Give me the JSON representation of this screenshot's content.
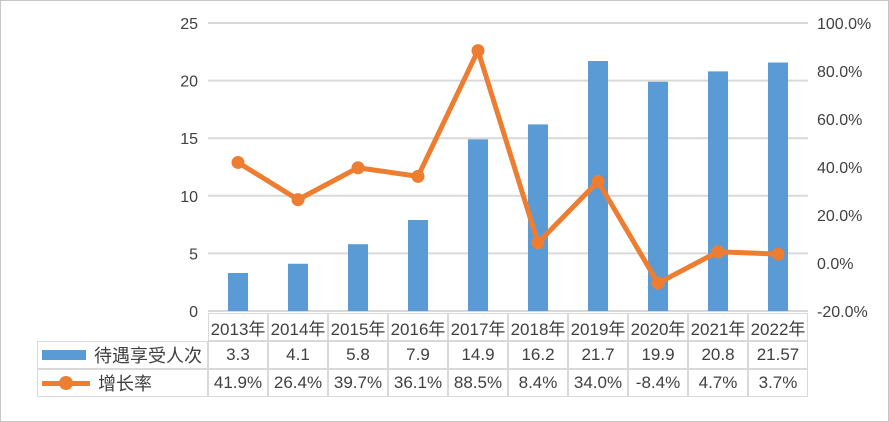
{
  "chart_data": {
    "type": "bar+line",
    "title": "",
    "categories": [
      "2013年",
      "2014年",
      "2015年",
      "2016年",
      "2017年",
      "2018年",
      "2019年",
      "2020年",
      "2021年",
      "2022年"
    ],
    "series": [
      {
        "name": "待遇享受人次",
        "chart_type": "bar",
        "axis": "left",
        "color": "#5B9BD5",
        "values": [
          3.3,
          4.1,
          5.8,
          7.9,
          14.9,
          16.2,
          21.7,
          19.9,
          20.8,
          21.57
        ],
        "display_labels": [
          "3.3",
          "4.1",
          "5.8",
          "7.9",
          "14.9",
          "16.2",
          "21.7",
          "19.9",
          "20.8",
          "21.57"
        ]
      },
      {
        "name": "增长率",
        "chart_type": "line",
        "axis": "right",
        "color": "#ED7D31",
        "values": [
          41.9,
          26.4,
          39.7,
          36.1,
          88.5,
          8.4,
          34.0,
          -8.4,
          4.7,
          3.7
        ],
        "display_labels": [
          "41.9%",
          "26.4%",
          "39.7%",
          "36.1%",
          "88.5%",
          "8.4%",
          "34.0%",
          "-8.4%",
          "4.7%",
          "3.7%"
        ]
      }
    ],
    "left_axis": {
      "min": 0,
      "max": 25,
      "ticks": [
        25,
        20,
        15,
        10,
        5,
        0
      ],
      "tick_labels": [
        "25",
        "20",
        "15",
        "10",
        "5",
        "0"
      ]
    },
    "right_axis": {
      "min": -20,
      "max": 100,
      "ticks": [
        100,
        80,
        60,
        40,
        20,
        0,
        -20
      ],
      "tick_labels": [
        "100.0%",
        "80.0%",
        "60.0%",
        "40.0%",
        "20.0%",
        "0.0%",
        "-20.0%"
      ]
    },
    "gridlines": "horizontal",
    "grid_color": "#D9D9D9",
    "text_color": "#404040",
    "legend_position": "table-left",
    "data_table_shown": true
  }
}
